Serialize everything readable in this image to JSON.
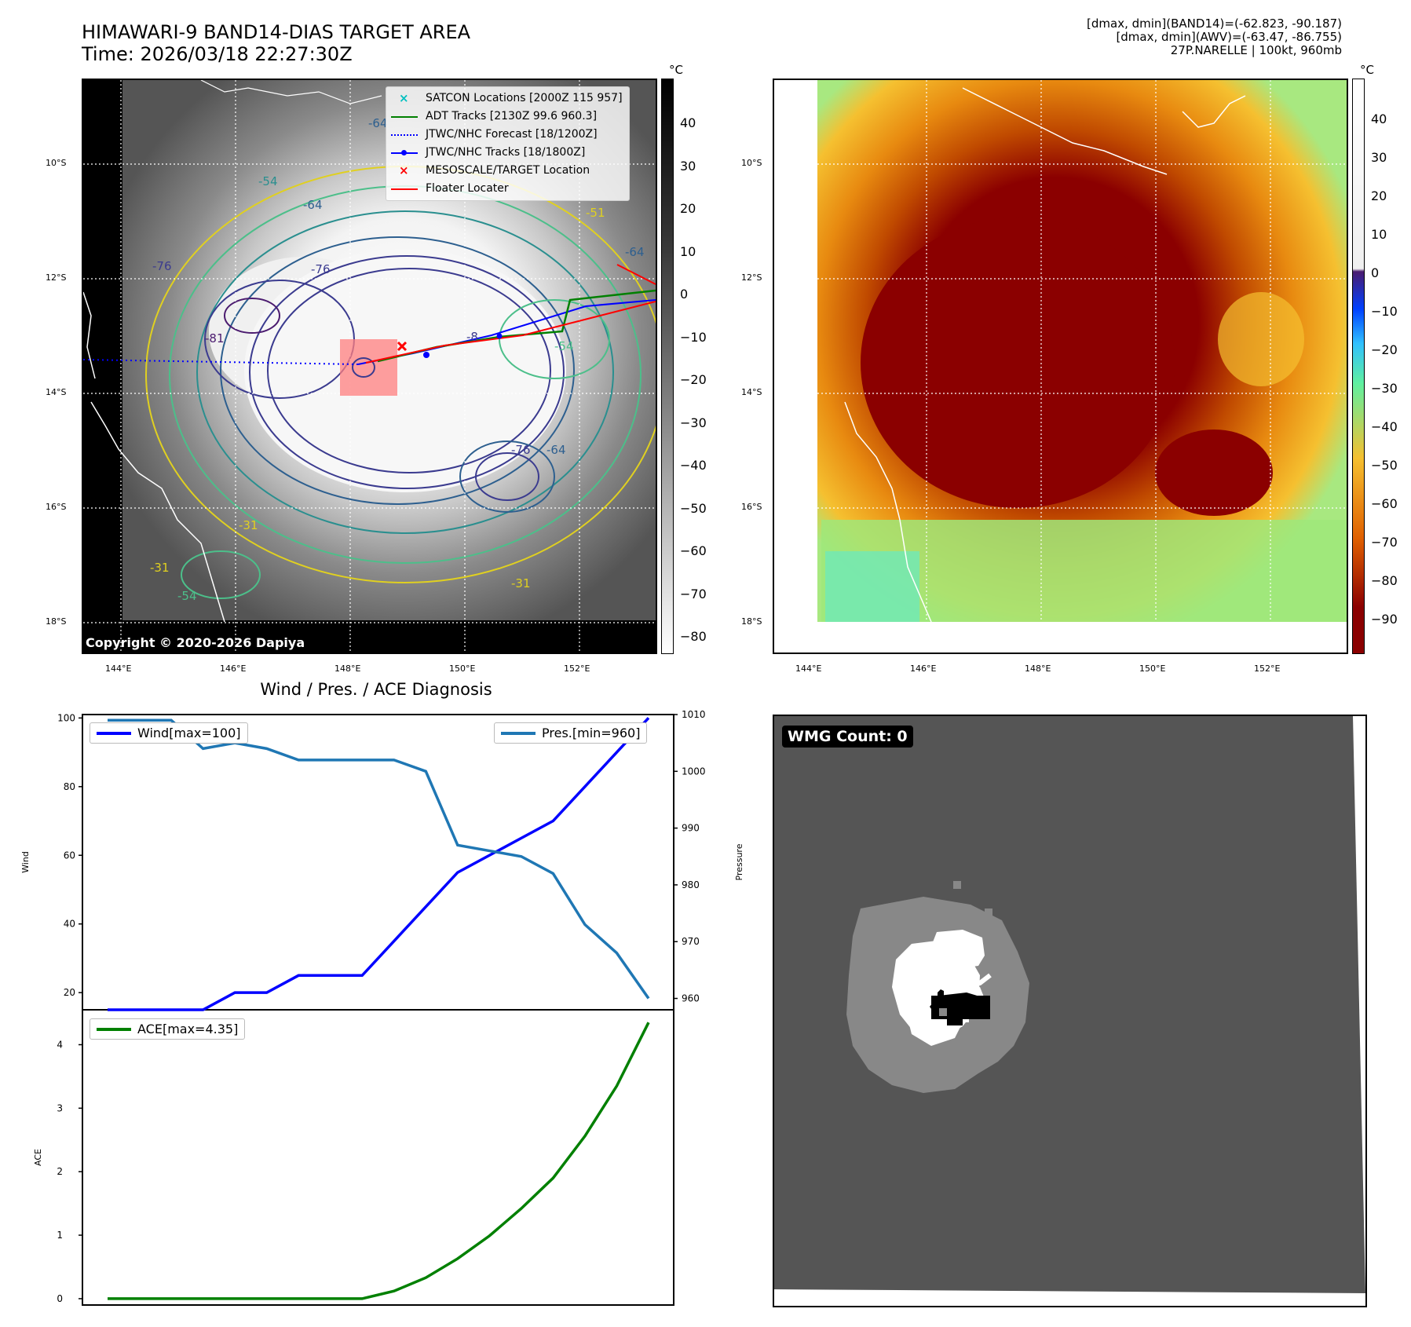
{
  "header": {
    "title_line1": "HIMAWARI-9 BAND14-DIAS TARGET AREA",
    "title_line2": "Time: 2026/03/18 22:27:30Z",
    "info_line1": "[dmax, dmin](BAND14)=(-62.823, -90.187)",
    "info_line2": "[dmax, dmin](AWV)=(-63.47, -86.755)",
    "info_line3": "27P.NARELLE | 100kt, 960mb"
  },
  "map_left": {
    "lat_labels": [
      "10°S",
      "12°S",
      "14°S",
      "16°S",
      "18°S"
    ],
    "lon_labels": [
      "144°E",
      "146°E",
      "148°E",
      "150°E",
      "152°E"
    ],
    "colorbar_unit": "°C",
    "colorbar_ticks": [
      "40",
      "30",
      "20",
      "10",
      "0",
      "−10",
      "−20",
      "−30",
      "−40",
      "−50",
      "−60",
      "−70",
      "−80"
    ],
    "copyright": "Copyright © 2020-2026 Dapiya",
    "contour_labels": [
      "-64",
      "-54",
      "-64",
      "-76",
      "-76",
      "-81",
      "-8",
      "-76",
      "-64",
      "-31",
      "-31",
      "-54",
      "-54",
      "-31",
      "-51",
      "-64"
    ],
    "legend": [
      {
        "label": "SATCON Locations [2000Z 115 957]",
        "color": "#00c0c0",
        "symbol": "x"
      },
      {
        "label": "ADT Tracks [2130Z 99.6 960.3]",
        "color": "#008000",
        "symbol": "line"
      },
      {
        "label": "JTWC/NHC Forecast [18/1200Z]",
        "color": "#0000ff",
        "symbol": "dotted"
      },
      {
        "label": "JTWC/NHC Tracks [18/1800Z]",
        "color": "#0000ff",
        "symbol": "dotline"
      },
      {
        "label": "MESOSCALE/TARGET Location",
        "color": "#ff0000",
        "symbol": "x"
      },
      {
        "label": "Floater Locater",
        "color": "#ff0000",
        "symbol": "line"
      }
    ]
  },
  "map_right": {
    "lat_labels": [
      "10°S",
      "12°S",
      "14°S",
      "16°S",
      "18°S"
    ],
    "lon_labels": [
      "144°E",
      "146°E",
      "148°E",
      "150°E",
      "152°E"
    ],
    "colorbar_unit": "°C",
    "colorbar_ticks": [
      "40",
      "30",
      "20",
      "10",
      "0",
      "−10",
      "−20",
      "−30",
      "−40",
      "−50",
      "−60",
      "−70",
      "−80",
      "−90"
    ]
  },
  "wmg_panel": {
    "label": "WMG Count: 0"
  },
  "chart_data": [
    {
      "type": "line",
      "title": "Wind / Pres. / ACE Diagnosis",
      "ylabel": "Wind",
      "y2label": "Pressure",
      "ylim": [
        15,
        101
      ],
      "y2lim": [
        958,
        1010
      ],
      "x": [
        0,
        1,
        2,
        3,
        4,
        5,
        6,
        7,
        8,
        9,
        10,
        11,
        12,
        13,
        14,
        15,
        16,
        17
      ],
      "yticks": [
        "100",
        "80",
        "60",
        "40",
        "20"
      ],
      "y2ticks": [
        "1010",
        "1000",
        "990",
        "980",
        "970",
        "960"
      ],
      "series": [
        {
          "name": "Wind[max=100]",
          "axis": "left",
          "color": "#0000ff",
          "values": [
            15,
            15,
            15,
            15,
            20,
            20,
            25,
            25,
            25,
            35,
            45,
            55,
            60,
            65,
            70,
            80,
            90,
            100
          ]
        },
        {
          "name": "Pres.[min=960]",
          "axis": "right",
          "color": "#1f77b4",
          "values": [
            1009,
            1009,
            1009,
            1004,
            1005,
            1004,
            1002,
            1002,
            1002,
            1002,
            1000,
            987,
            986,
            985,
            982,
            973,
            968,
            960
          ]
        }
      ]
    },
    {
      "type": "line",
      "ylabel": "ACE",
      "ylim": [
        -0.1,
        4.55
      ],
      "x": [
        0,
        1,
        2,
        3,
        4,
        5,
        6,
        7,
        8,
        9,
        10,
        11,
        12,
        13,
        14,
        15,
        16,
        17
      ],
      "yticks": [
        "4",
        "3",
        "2",
        "1",
        "0"
      ],
      "series": [
        {
          "name": "ACE[max=4.35]",
          "color": "#008000",
          "values": [
            0,
            0,
            0,
            0,
            0,
            0,
            0,
            0,
            0,
            0.12,
            0.33,
            0.63,
            0.99,
            1.42,
            1.9,
            2.56,
            3.35,
            4.35
          ]
        }
      ]
    }
  ]
}
